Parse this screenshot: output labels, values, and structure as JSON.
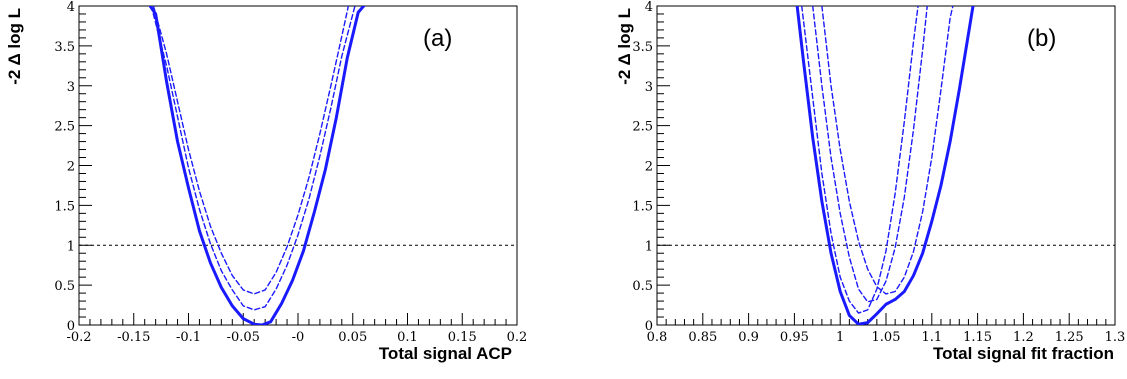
{
  "chart_data": [
    {
      "type": "line",
      "panel_label": "(a)",
      "xlabel": "Total signal ACP",
      "ylabel": "-2 Δ log L",
      "xlim": [
        -0.2,
        0.2
      ],
      "ylim": [
        0,
        4
      ],
      "xticks": [
        -0.2,
        -0.15,
        -0.1,
        -0.05,
        0,
        0.05,
        0.1,
        0.15,
        0.2
      ],
      "xtick_labels": [
        "-0.2",
        "-0.15",
        "-0.1",
        "-0.05",
        "-0",
        "0.05",
        "0.1",
        "0.15",
        "0.2"
      ],
      "yticks": [
        0,
        0.5,
        1,
        1.5,
        2,
        2.5,
        3,
        3.5,
        4
      ],
      "ytick_labels": [
        "0",
        "0.5",
        "1",
        "1.5",
        "2",
        "2.5",
        "3",
        "3.5",
        "4"
      ],
      "reference_line_y": 1,
      "line_color": "#1a1aff",
      "series": [
        {
          "style": "solid",
          "points": [
            [
              -0.135,
              4.0
            ],
            [
              -0.13,
              3.9
            ],
            [
              -0.12,
              3.05
            ],
            [
              -0.11,
              2.3
            ],
            [
              -0.1,
              1.72
            ],
            [
              -0.09,
              1.18
            ],
            [
              -0.08,
              0.78
            ],
            [
              -0.07,
              0.47
            ],
            [
              -0.06,
              0.24
            ],
            [
              -0.05,
              0.08
            ],
            [
              -0.04,
              0.01
            ],
            [
              -0.033,
              0.0
            ],
            [
              -0.025,
              0.04
            ],
            [
              -0.015,
              0.27
            ],
            [
              -0.005,
              0.56
            ],
            [
              0.005,
              0.93
            ],
            [
              0.015,
              1.42
            ],
            [
              0.025,
              1.95
            ],
            [
              0.035,
              2.6
            ],
            [
              0.045,
              3.35
            ],
            [
              0.055,
              3.92
            ],
            [
              0.06,
              4.0
            ]
          ]
        },
        {
          "style": "dashed",
          "points": [
            [
              -0.134,
              4.0
            ],
            [
              -0.12,
              3.25
            ],
            [
              -0.1,
              1.97
            ],
            [
              -0.09,
              1.45
            ],
            [
              -0.08,
              1.02
            ],
            [
              -0.07,
              0.68
            ],
            [
              -0.06,
              0.44
            ],
            [
              -0.05,
              0.24
            ],
            [
              -0.04,
              0.19
            ],
            [
              -0.03,
              0.23
            ],
            [
              -0.02,
              0.45
            ],
            [
              -0.01,
              0.75
            ],
            [
              0.0,
              1.13
            ],
            [
              0.01,
              1.58
            ],
            [
              0.02,
              2.12
            ],
            [
              0.03,
              2.72
            ],
            [
              0.04,
              3.37
            ],
            [
              0.052,
              4.0
            ]
          ]
        },
        {
          "style": "dashed",
          "points": [
            [
              -0.132,
              4.0
            ],
            [
              -0.12,
              3.4
            ],
            [
              -0.1,
              2.2
            ],
            [
              -0.09,
              1.68
            ],
            [
              -0.08,
              1.24
            ],
            [
              -0.07,
              0.9
            ],
            [
              -0.06,
              0.62
            ],
            [
              -0.05,
              0.44
            ],
            [
              -0.04,
              0.39
            ],
            [
              -0.03,
              0.44
            ],
            [
              -0.02,
              0.66
            ],
            [
              -0.01,
              0.98
            ],
            [
              0.0,
              1.38
            ],
            [
              0.01,
              1.85
            ],
            [
              0.02,
              2.4
            ],
            [
              0.03,
              3.0
            ],
            [
              0.04,
              3.62
            ],
            [
              0.046,
              4.0
            ]
          ]
        }
      ]
    },
    {
      "type": "line",
      "panel_label": "(b)",
      "xlabel": "Total signal fit fraction",
      "ylabel": "-2 Δ log L",
      "xlim": [
        0.8,
        1.3
      ],
      "ylim": [
        0,
        4
      ],
      "xticks": [
        0.8,
        0.85,
        0.9,
        0.95,
        1,
        1.05,
        1.1,
        1.15,
        1.2,
        1.25,
        1.3
      ],
      "xtick_labels": [
        "0.8",
        "0.85",
        "0.9",
        "0.95",
        "1",
        "1.05",
        "1.1",
        "1.15",
        "1.2",
        "1.25",
        "1.3"
      ],
      "yticks": [
        0,
        0.5,
        1,
        1.5,
        2,
        2.5,
        3,
        3.5,
        4
      ],
      "ytick_labels": [
        "0",
        "0.5",
        "1",
        "1.5",
        "2",
        "2.5",
        "3",
        "3.5",
        "4"
      ],
      "reference_line_y": 1,
      "line_color": "#1a1aff",
      "series": [
        {
          "style": "solid",
          "points": [
            [
              0.953,
              4.0
            ],
            [
              0.96,
              3.3
            ],
            [
              0.97,
              2.35
            ],
            [
              0.98,
              1.55
            ],
            [
              0.99,
              0.9
            ],
            [
              1.0,
              0.42
            ],
            [
              1.01,
              0.12
            ],
            [
              1.02,
              0.01
            ],
            [
              1.03,
              0.03
            ],
            [
              1.04,
              0.14
            ],
            [
              1.05,
              0.26
            ],
            [
              1.06,
              0.32
            ],
            [
              1.07,
              0.42
            ],
            [
              1.08,
              0.62
            ],
            [
              1.09,
              0.9
            ],
            [
              1.1,
              1.3
            ],
            [
              1.11,
              1.75
            ],
            [
              1.12,
              2.3
            ],
            [
              1.13,
              2.95
            ],
            [
              1.14,
              3.65
            ],
            [
              1.145,
              4.0
            ]
          ]
        },
        {
          "style": "dashed",
          "points": [
            [
              0.958,
              4.0
            ],
            [
              0.97,
              2.85
            ],
            [
              0.98,
              1.9
            ],
            [
              0.99,
              1.15
            ],
            [
              1.0,
              0.6
            ],
            [
              1.01,
              0.3
            ],
            [
              1.02,
              0.15
            ],
            [
              1.03,
              0.19
            ],
            [
              1.04,
              0.45
            ],
            [
              1.05,
              0.93
            ],
            [
              1.06,
              1.65
            ],
            [
              1.07,
              2.55
            ],
            [
              1.08,
              3.55
            ],
            [
              1.085,
              4.0
            ]
          ]
        },
        {
          "style": "dashed",
          "points": [
            [
              0.97,
              4.0
            ],
            [
              0.98,
              3.0
            ],
            [
              0.99,
              2.1
            ],
            [
              1.0,
              1.4
            ],
            [
              1.01,
              0.85
            ],
            [
              1.02,
              0.45
            ],
            [
              1.03,
              0.29
            ],
            [
              1.04,
              0.32
            ],
            [
              1.05,
              0.55
            ],
            [
              1.06,
              0.97
            ],
            [
              1.07,
              1.6
            ],
            [
              1.08,
              2.45
            ],
            [
              1.09,
              3.45
            ],
            [
              1.095,
              4.0
            ]
          ]
        },
        {
          "style": "dashed",
          "points": [
            [
              0.98,
              4.0
            ],
            [
              0.99,
              3.0
            ],
            [
              1.0,
              2.2
            ],
            [
              1.01,
              1.55
            ],
            [
              1.02,
              1.05
            ],
            [
              1.03,
              0.7
            ],
            [
              1.04,
              0.48
            ],
            [
              1.05,
              0.39
            ],
            [
              1.06,
              0.42
            ],
            [
              1.07,
              0.6
            ],
            [
              1.08,
              0.92
            ],
            [
              1.09,
              1.42
            ],
            [
              1.1,
              2.1
            ],
            [
              1.11,
              2.95
            ],
            [
              1.12,
              3.85
            ],
            [
              1.123,
              4.0
            ]
          ]
        }
      ]
    }
  ]
}
